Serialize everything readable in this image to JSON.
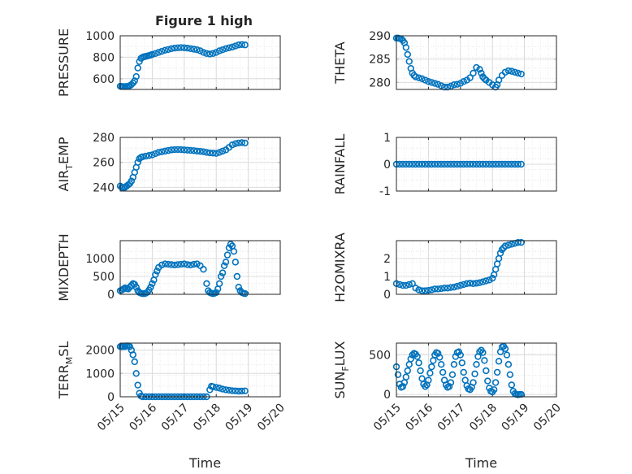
{
  "figure": {
    "title": "Figure 1 high"
  },
  "chart_data": [
    {
      "type": "scatter",
      "title": "Figure 1 high",
      "ylabel_parts": [
        {
          "t": "PRESSURE"
        }
      ],
      "xlabel": "",
      "xlim": [
        "05/15",
        "05/20"
      ],
      "ylim": [
        500,
        1000
      ],
      "yticks": [
        "600",
        "800",
        "1000"
      ],
      "xticks": [
        "",
        "",
        "",
        "",
        "",
        ""
      ],
      "grid": true,
      "series": [
        {
          "x": [
            15.0,
            15.05,
            15.1,
            15.15,
            15.2,
            15.25,
            15.3,
            15.35,
            15.4,
            15.45,
            15.5,
            15.55,
            15.6,
            15.65,
            15.7,
            15.75,
            15.8,
            15.85,
            15.9,
            15.95,
            16.0,
            16.1,
            16.2,
            16.3,
            16.4,
            16.5,
            16.6,
            16.7,
            16.8,
            16.9,
            17.0,
            17.1,
            17.2,
            17.3,
            17.4,
            17.5,
            17.6,
            17.7,
            17.8,
            17.9,
            18.0,
            18.1,
            18.2,
            18.3,
            18.4,
            18.5,
            18.6,
            18.7,
            18.8,
            18.9
          ],
          "y": [
            530,
            528,
            527,
            527,
            528,
            530,
            535,
            545,
            560,
            580,
            620,
            700,
            760,
            790,
            800,
            805,
            808,
            812,
            816,
            820,
            826,
            835,
            845,
            855,
            865,
            872,
            880,
            885,
            888,
            890,
            888,
            885,
            880,
            875,
            870,
            860,
            845,
            835,
            830,
            835,
            845,
            860,
            870,
            880,
            888,
            895,
            905,
            915,
            918,
            915
          ]
        }
      ]
    },
    {
      "type": "scatter",
      "title": "",
      "ylabel_parts": [
        {
          "t": "THETA"
        }
      ],
      "xlabel": "",
      "xlim": [
        "05/15",
        "05/20"
      ],
      "ylim": [
        278.5,
        290
      ],
      "yticks": [
        "280",
        "285",
        "290"
      ],
      "xticks": [
        "",
        "",
        "",
        "",
        "",
        ""
      ],
      "grid": true,
      "series": [
        {
          "x": [
            15.0,
            15.05,
            15.1,
            15.15,
            15.2,
            15.25,
            15.3,
            15.35,
            15.4,
            15.45,
            15.5,
            15.55,
            15.6,
            15.7,
            15.8,
            15.9,
            16.0,
            16.1,
            16.2,
            16.3,
            16.4,
            16.5,
            16.6,
            16.7,
            16.8,
            16.9,
            17.0,
            17.1,
            17.2,
            17.3,
            17.4,
            17.5,
            17.6,
            17.65,
            17.7,
            17.75,
            17.8,
            17.9,
            18.0,
            18.1,
            18.15,
            18.2,
            18.3,
            18.4,
            18.5,
            18.6,
            18.7,
            18.8,
            18.9
          ],
          "y": [
            289.5,
            289.5,
            289.4,
            289.3,
            289.0,
            288.5,
            287.5,
            286.0,
            284.5,
            283.0,
            282.0,
            281.5,
            281.2,
            281.0,
            280.8,
            280.5,
            280.2,
            280.0,
            279.8,
            279.6,
            279.3,
            279.0,
            279.0,
            279.2,
            279.5,
            279.6,
            279.8,
            280.2,
            280.5,
            281.0,
            282.0,
            283.2,
            282.8,
            282.0,
            281.2,
            280.8,
            280.5,
            280.0,
            279.5,
            279.0,
            279.5,
            280.5,
            281.5,
            282.2,
            282.5,
            282.4,
            282.2,
            282.0,
            281.8
          ]
        }
      ]
    },
    {
      "type": "scatter",
      "title": "",
      "ylabel_parts": [
        {
          "t": "AIR"
        },
        {
          "t": "T",
          "sub": true
        },
        {
          "t": "EMP"
        }
      ],
      "xlabel": "",
      "xlim": [
        "05/15",
        "05/20"
      ],
      "ylim": [
        237,
        280
      ],
      "yticks": [
        "240",
        "260",
        "280"
      ],
      "xticks": [
        "",
        "",
        "",
        "",
        "",
        ""
      ],
      "grid": true,
      "series": [
        {
          "x": [
            15.0,
            15.05,
            15.1,
            15.15,
            15.2,
            15.25,
            15.3,
            15.35,
            15.4,
            15.45,
            15.5,
            15.55,
            15.6,
            15.65,
            15.7,
            15.8,
            15.9,
            16.0,
            16.1,
            16.2,
            16.3,
            16.4,
            16.5,
            16.6,
            16.7,
            16.8,
            16.9,
            17.0,
            17.1,
            17.2,
            17.3,
            17.4,
            17.5,
            17.6,
            17.7,
            17.8,
            17.9,
            18.0,
            18.1,
            18.2,
            18.3,
            18.4,
            18.5,
            18.6,
            18.7,
            18.8,
            18.9
          ],
          "y": [
            241,
            240,
            240,
            240,
            241,
            242,
            243,
            245,
            248,
            252,
            256,
            260,
            263,
            264,
            264.5,
            265,
            265.5,
            266,
            267,
            268,
            268.5,
            269,
            269.5,
            270,
            270.2,
            270.3,
            270.2,
            270,
            269.8,
            269.6,
            269.4,
            269,
            268.8,
            268.5,
            268,
            267.6,
            267.4,
            267.2,
            268,
            269,
            270,
            272,
            274,
            275,
            275.5,
            275.8,
            275.5
          ]
        }
      ]
    },
    {
      "type": "scatter",
      "title": "",
      "ylabel_parts": [
        {
          "t": "RAINFALL"
        }
      ],
      "xlabel": "",
      "xlim": [
        "05/15",
        "05/20"
      ],
      "ylim": [
        -1,
        1
      ],
      "yticks": [
        "-1",
        "0",
        "1"
      ],
      "xticks": [
        "",
        "",
        "",
        "",
        "",
        ""
      ],
      "grid": true,
      "series": [
        {
          "x": [
            15.0,
            15.1,
            15.2,
            15.3,
            15.4,
            15.5,
            15.6,
            15.7,
            15.8,
            15.9,
            16.0,
            16.1,
            16.2,
            16.3,
            16.4,
            16.5,
            16.6,
            16.7,
            16.8,
            16.9,
            17.0,
            17.1,
            17.2,
            17.3,
            17.4,
            17.5,
            17.6,
            17.7,
            17.8,
            17.9,
            18.0,
            18.1,
            18.2,
            18.3,
            18.4,
            18.5,
            18.6,
            18.7,
            18.8,
            18.9
          ],
          "y": [
            0,
            0,
            0,
            0,
            0,
            0,
            0,
            0,
            0,
            0,
            0,
            0,
            0,
            0,
            0,
            0,
            0,
            0,
            0,
            0,
            0,
            0,
            0,
            0,
            0,
            0,
            0,
            0,
            0,
            0,
            0,
            0,
            0,
            0,
            0,
            0,
            0,
            0,
            0,
            0
          ]
        }
      ]
    },
    {
      "type": "scatter",
      "title": "",
      "ylabel_parts": [
        {
          "t": "MIXDEPTH"
        }
      ],
      "xlabel": "",
      "xlim": [
        "05/15",
        "05/20"
      ],
      "ylim": [
        0,
        1500
      ],
      "yticks": [
        "0",
        "500",
        "1000"
      ],
      "xticks": [
        "",
        "",
        "",
        "",
        "",
        ""
      ],
      "grid": true,
      "series": [
        {
          "x": [
            15.0,
            15.05,
            15.1,
            15.15,
            15.2,
            15.25,
            15.3,
            15.35,
            15.4,
            15.45,
            15.5,
            15.55,
            15.6,
            15.65,
            15.7,
            15.75,
            15.8,
            15.85,
            15.9,
            15.95,
            16.0,
            16.05,
            16.1,
            16.15,
            16.2,
            16.3,
            16.4,
            16.5,
            16.6,
            16.7,
            16.8,
            16.9,
            17.0,
            17.1,
            17.2,
            17.3,
            17.4,
            17.5,
            17.6,
            17.7,
            17.75,
            17.8,
            17.85,
            17.9,
            17.95,
            18.0,
            18.05,
            18.1,
            18.15,
            18.2,
            18.25,
            18.3,
            18.35,
            18.4,
            18.45,
            18.5,
            18.55,
            18.6,
            18.65,
            18.7,
            18.75,
            18.8,
            18.85,
            18.9
          ],
          "y": [
            100,
            120,
            150,
            180,
            160,
            150,
            200,
            250,
            300,
            280,
            200,
            100,
            50,
            30,
            20,
            20,
            30,
            60,
            120,
            200,
            300,
            400,
            550,
            650,
            750,
            820,
            850,
            840,
            830,
            820,
            830,
            840,
            850,
            830,
            820,
            840,
            850,
            800,
            700,
            300,
            100,
            50,
            30,
            20,
            30,
            50,
            150,
            300,
            500,
            600,
            800,
            900,
            1100,
            1300,
            1400,
            1350,
            1200,
            900,
            500,
            200,
            100,
            50,
            30,
            20
          ]
        }
      ]
    },
    {
      "type": "scatter",
      "title": "",
      "ylabel_parts": [
        {
          "t": "H2OMIXRA"
        }
      ],
      "xlabel": "",
      "xlim": [
        "05/15",
        "05/20"
      ],
      "ylim": [
        0,
        3
      ],
      "yticks": [
        "0",
        "1",
        "2"
      ],
      "xticks": [
        "",
        "",
        "",
        "",
        "",
        ""
      ],
      "grid": true,
      "series": [
        {
          "x": [
            15.0,
            15.1,
            15.2,
            15.3,
            15.4,
            15.5,
            15.6,
            15.7,
            15.8,
            15.9,
            16.0,
            16.1,
            16.2,
            16.3,
            16.4,
            16.5,
            16.6,
            16.7,
            16.8,
            16.9,
            17.0,
            17.1,
            17.2,
            17.3,
            17.4,
            17.5,
            17.6,
            17.7,
            17.8,
            17.9,
            18.0,
            18.05,
            18.1,
            18.15,
            18.2,
            18.25,
            18.3,
            18.35,
            18.4,
            18.5,
            18.6,
            18.7,
            18.8,
            18.9
          ],
          "y": [
            0.6,
            0.55,
            0.5,
            0.5,
            0.55,
            0.6,
            0.35,
            0.25,
            0.2,
            0.2,
            0.22,
            0.25,
            0.3,
            0.3,
            0.32,
            0.35,
            0.35,
            0.38,
            0.4,
            0.45,
            0.5,
            0.55,
            0.6,
            0.62,
            0.6,
            0.62,
            0.65,
            0.7,
            0.75,
            0.8,
            0.9,
            1.1,
            1.4,
            1.7,
            2.0,
            2.3,
            2.5,
            2.6,
            2.7,
            2.75,
            2.8,
            2.85,
            2.9,
            2.9
          ]
        }
      ]
    },
    {
      "type": "scatter",
      "title": "",
      "ylabel_parts": [
        {
          "t": "TERR"
        },
        {
          "t": "M",
          "sub": true
        },
        {
          "t": "SL"
        }
      ],
      "xlabel": "Time",
      "xlim": [
        "05/15",
        "05/20"
      ],
      "ylim": [
        0,
        2300
      ],
      "yticks": [
        "0",
        "1000",
        "2000"
      ],
      "xticks": [
        "05/15",
        "05/16",
        "05/17",
        "05/18",
        "05/19",
        "05/20"
      ],
      "grid": true,
      "series": [
        {
          "x": [
            15.0,
            15.05,
            15.1,
            15.15,
            15.2,
            15.25,
            15.3,
            15.35,
            15.4,
            15.45,
            15.5,
            15.55,
            15.6,
            15.65,
            15.7,
            15.8,
            15.9,
            16.0,
            16.1,
            16.2,
            16.3,
            16.4,
            16.5,
            16.6,
            16.7,
            16.8,
            16.9,
            17.0,
            17.1,
            17.2,
            17.3,
            17.4,
            17.5,
            17.6,
            17.7,
            17.8,
            17.85,
            17.9,
            18.0,
            18.1,
            18.2,
            18.3,
            18.4,
            18.5,
            18.6,
            18.7,
            18.8,
            18.9
          ],
          "y": [
            2150,
            2150,
            2150,
            2150,
            2180,
            2180,
            2150,
            2000,
            1800,
            1500,
            1000,
            500,
            150,
            30,
            0,
            0,
            0,
            0,
            0,
            0,
            0,
            0,
            0,
            0,
            0,
            0,
            0,
            0,
            0,
            0,
            0,
            0,
            0,
            0,
            0,
            300,
            450,
            430,
            400,
            370,
            330,
            300,
            280,
            260,
            250,
            240,
            245,
            250
          ]
        }
      ]
    },
    {
      "type": "scatter",
      "title": "",
      "ylabel_parts": [
        {
          "t": "SUN"
        },
        {
          "t": "F",
          "sub": true
        },
        {
          "t": "LUX"
        }
      ],
      "xlabel": "Time",
      "xlim": [
        "05/15",
        "05/20"
      ],
      "ylim": [
        -30,
        650
      ],
      "yticks": [
        "0",
        "500"
      ],
      "xticks": [
        "05/15",
        "05/16",
        "05/17",
        "05/18",
        "05/19",
        "05/20"
      ],
      "grid": true,
      "series": [
        {
          "x": [
            15.0,
            15.05,
            15.1,
            15.15,
            15.2,
            15.25,
            15.3,
            15.35,
            15.4,
            15.45,
            15.5,
            15.55,
            15.6,
            15.65,
            15.7,
            15.75,
            15.8,
            15.85,
            15.9,
            15.95,
            16.0,
            16.05,
            16.1,
            16.15,
            16.2,
            16.25,
            16.3,
            16.35,
            16.4,
            16.45,
            16.5,
            16.55,
            16.6,
            16.65,
            16.7,
            16.75,
            16.8,
            16.85,
            16.9,
            16.95,
            17.0,
            17.05,
            17.1,
            17.15,
            17.2,
            17.25,
            17.3,
            17.35,
            17.4,
            17.45,
            17.5,
            17.55,
            17.6,
            17.65,
            17.7,
            17.75,
            17.8,
            17.85,
            17.9,
            17.95,
            18.0,
            18.05,
            18.1,
            18.15,
            18.2,
            18.25,
            18.3,
            18.35,
            18.4,
            18.45,
            18.5,
            18.55,
            18.6,
            18.65,
            18.7,
            18.75,
            18.8,
            18.85,
            18.9
          ],
          "y": [
            350,
            250,
            130,
            90,
            100,
            150,
            220,
            300,
            380,
            450,
            500,
            520,
            510,
            480,
            400,
            300,
            200,
            130,
            100,
            120,
            180,
            270,
            350,
            430,
            500,
            530,
            520,
            470,
            380,
            280,
            180,
            120,
            90,
            100,
            150,
            250,
            380,
            480,
            530,
            540,
            500,
            400,
            280,
            180,
            110,
            70,
            60,
            90,
            150,
            260,
            380,
            480,
            540,
            560,
            530,
            430,
            300,
            170,
            80,
            40,
            30,
            60,
            150,
            280,
            420,
            540,
            600,
            610,
            580,
            500,
            380,
            250,
            120,
            40,
            10,
            0,
            -5,
            0,
            0
          ]
        }
      ]
    }
  ]
}
